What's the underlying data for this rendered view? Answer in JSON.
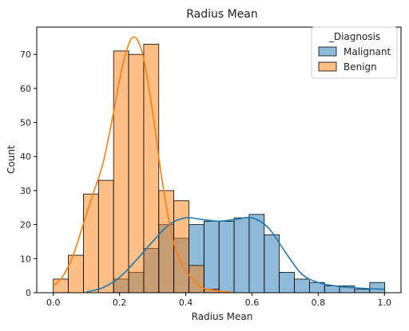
{
  "chart_data": {
    "type": "bar",
    "title": "Radius Mean",
    "xlabel": "Radius Mean",
    "ylabel": "Count",
    "xlim": [
      -0.05,
      1.05
    ],
    "ylim": [
      0,
      78
    ],
    "x_ticks": [
      "0.0",
      "0.2",
      "0.4",
      "0.6",
      "0.8",
      "1.0"
    ],
    "y_ticks": [
      "0",
      "10",
      "20",
      "30",
      "40",
      "50",
      "60",
      "70"
    ],
    "bin_width": 0.0455,
    "legend": {
      "title": "_Diagnosis",
      "placement": "top-right"
    },
    "series": [
      {
        "name": "Malignant",
        "color": "#1f77b4",
        "bin_left": [
          0.0,
          0.0455,
          0.091,
          0.1365,
          0.182,
          0.2275,
          0.273,
          0.3185,
          0.364,
          0.4095,
          0.455,
          0.5005,
          0.546,
          0.5915,
          0.637,
          0.6825,
          0.728,
          0.7735,
          0.819,
          0.8645,
          0.91,
          0.9555
        ],
        "values": [
          0,
          0,
          0,
          0,
          4,
          6,
          13,
          20,
          16,
          20,
          21,
          21,
          22,
          23,
          17,
          6,
          4,
          3,
          2,
          2,
          1,
          3
        ],
        "kde_x": [
          0.1,
          0.15,
          0.2,
          0.25,
          0.3,
          0.35,
          0.4,
          0.45,
          0.5,
          0.55,
          0.6,
          0.65,
          0.7,
          0.75,
          0.8,
          0.85,
          0.9,
          0.95,
          1.0
        ],
        "kde_y": [
          0.2,
          1.5,
          4.5,
          9.5,
          15,
          20,
          22,
          21.5,
          21,
          21.5,
          22,
          19,
          12,
          5.5,
          3,
          2,
          1.5,
          1.2,
          1
        ]
      },
      {
        "name": "Benign",
        "color": "#ff7f0e",
        "bin_left": [
          0.0,
          0.0455,
          0.091,
          0.1365,
          0.182,
          0.2275,
          0.273,
          0.3185,
          0.364,
          0.4095,
          0.455
        ],
        "values": [
          4,
          11,
          29,
          33,
          71,
          70,
          73,
          30,
          27,
          8,
          1
        ],
        "kde_x": [
          0.0,
          0.03,
          0.06,
          0.09,
          0.12,
          0.15,
          0.18,
          0.21,
          0.24,
          0.27,
          0.3,
          0.33,
          0.36,
          0.39,
          0.42,
          0.45,
          0.48,
          0.51,
          0.54
        ],
        "kde_y": [
          2,
          5,
          11,
          20,
          29,
          38,
          52,
          67,
          75,
          70,
          53,
          32,
          16,
          8,
          4,
          1.5,
          0.8,
          0.4,
          0.2
        ]
      }
    ]
  }
}
